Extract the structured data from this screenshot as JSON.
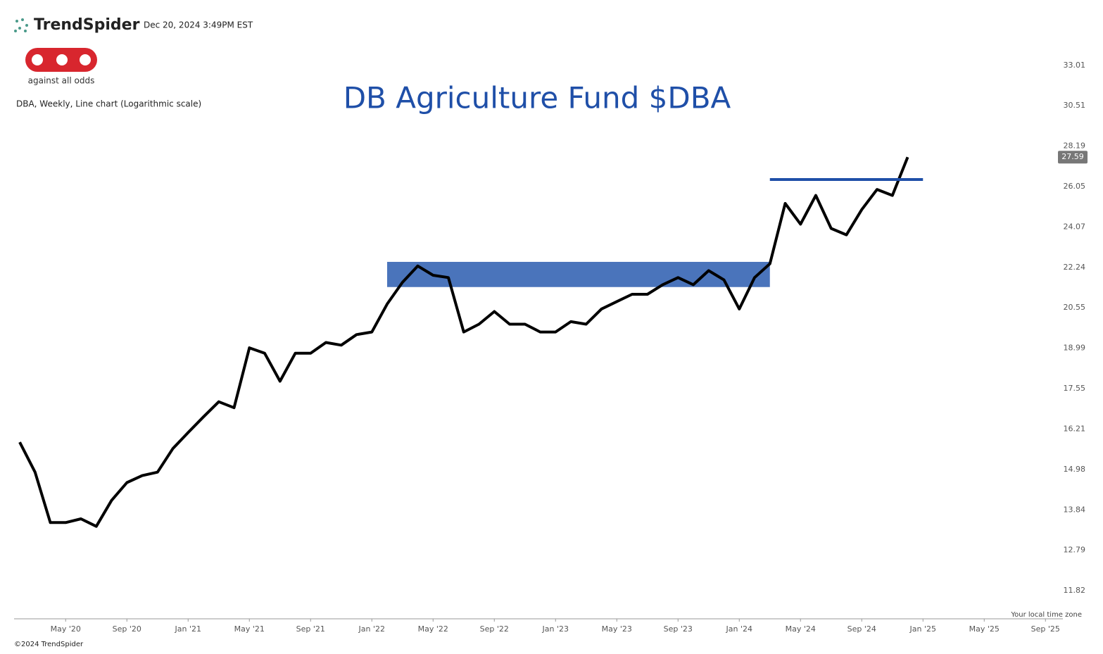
{
  "header": {
    "brand": "TrendSpider",
    "timestamp": "Dec 20, 2024 3:49PM EST",
    "logo_caption": "against all odds",
    "chart_info": "DBA, Weekly, Line chart (Logarithmic scale)"
  },
  "footer": {
    "copyright": "©2024 TrendSpider",
    "timezone_note": "Your local time zone"
  },
  "chart_data": {
    "type": "line",
    "title": "DB Agriculture Fund $DBA",
    "log_scale": true,
    "color": "#000000",
    "x": [
      "2020-02",
      "2020-03",
      "2020-04",
      "2020-05",
      "2020-06",
      "2020-07",
      "2020-08",
      "2020-09",
      "2020-10",
      "2020-11",
      "2020-12",
      "2021-01",
      "2021-02",
      "2021-03",
      "2021-04",
      "2021-05",
      "2021-06",
      "2021-07",
      "2021-08",
      "2021-09",
      "2021-10",
      "2021-11",
      "2021-12",
      "2022-01",
      "2022-02",
      "2022-03",
      "2022-04",
      "2022-05",
      "2022-06",
      "2022-07",
      "2022-08",
      "2022-09",
      "2022-10",
      "2022-11",
      "2022-12",
      "2023-01",
      "2023-02",
      "2023-03",
      "2023-04",
      "2023-05",
      "2023-06",
      "2023-07",
      "2023-08",
      "2023-09",
      "2023-10",
      "2023-11",
      "2023-12",
      "2024-01",
      "2024-02",
      "2024-03",
      "2024-04",
      "2024-05",
      "2024-06",
      "2024-07",
      "2024-08",
      "2024-09",
      "2024-10",
      "2024-11",
      "2024-12"
    ],
    "values": [
      15.8,
      14.9,
      13.5,
      13.5,
      13.6,
      13.4,
      14.1,
      14.6,
      14.8,
      14.9,
      15.6,
      16.1,
      16.6,
      17.1,
      16.9,
      19.0,
      18.8,
      17.8,
      18.8,
      18.8,
      19.2,
      19.1,
      19.5,
      19.6,
      20.7,
      21.6,
      22.3,
      21.9,
      21.8,
      19.6,
      19.9,
      20.4,
      19.9,
      19.9,
      19.6,
      19.6,
      20.0,
      19.9,
      20.5,
      20.8,
      21.1,
      21.1,
      21.5,
      21.8,
      21.5,
      22.1,
      21.7,
      20.5,
      21.8,
      22.4,
      25.2,
      24.2,
      25.6,
      24.0,
      23.7,
      24.9,
      25.9,
      25.6,
      27.59
    ],
    "xlim": [
      "2020-02",
      "2025-10"
    ],
    "xticks": [
      {
        "value": "2020-05",
        "label": "May '20"
      },
      {
        "value": "2020-09",
        "label": "Sep '20"
      },
      {
        "value": "2021-01",
        "label": "Jan '21"
      },
      {
        "value": "2021-05",
        "label": "May '21"
      },
      {
        "value": "2021-09",
        "label": "Sep '21"
      },
      {
        "value": "2022-01",
        "label": "Jan '22"
      },
      {
        "value": "2022-05",
        "label": "May '22"
      },
      {
        "value": "2022-09",
        "label": "Sep '22"
      },
      {
        "value": "2023-01",
        "label": "Jan '23"
      },
      {
        "value": "2023-05",
        "label": "May '23"
      },
      {
        "value": "2023-09",
        "label": "Sep '23"
      },
      {
        "value": "2024-01",
        "label": "Jan '24"
      },
      {
        "value": "2024-05",
        "label": "May '24"
      },
      {
        "value": "2024-09",
        "label": "Sep '24"
      },
      {
        "value": "2025-01",
        "label": "Jan '25"
      },
      {
        "value": "2025-05",
        "label": "May '25"
      },
      {
        "value": "2025-09",
        "label": "Sep '25"
      }
    ],
    "ylim": [
      11.2,
      34.07
    ],
    "yticks": [
      33.01,
      30.51,
      28.19,
      26.05,
      24.07,
      22.24,
      20.55,
      18.99,
      17.55,
      16.21,
      14.98,
      13.84,
      12.79,
      11.82
    ],
    "zone": {
      "x": [
        "2022-02",
        "2024-03"
      ],
      "y": [
        21.4,
        22.48
      ],
      "color": "#4a74bb"
    },
    "resistance": {
      "x": [
        "2024-03",
        "2025-01"
      ],
      "y": 26.41,
      "color": "#1f4fa8"
    }
  }
}
